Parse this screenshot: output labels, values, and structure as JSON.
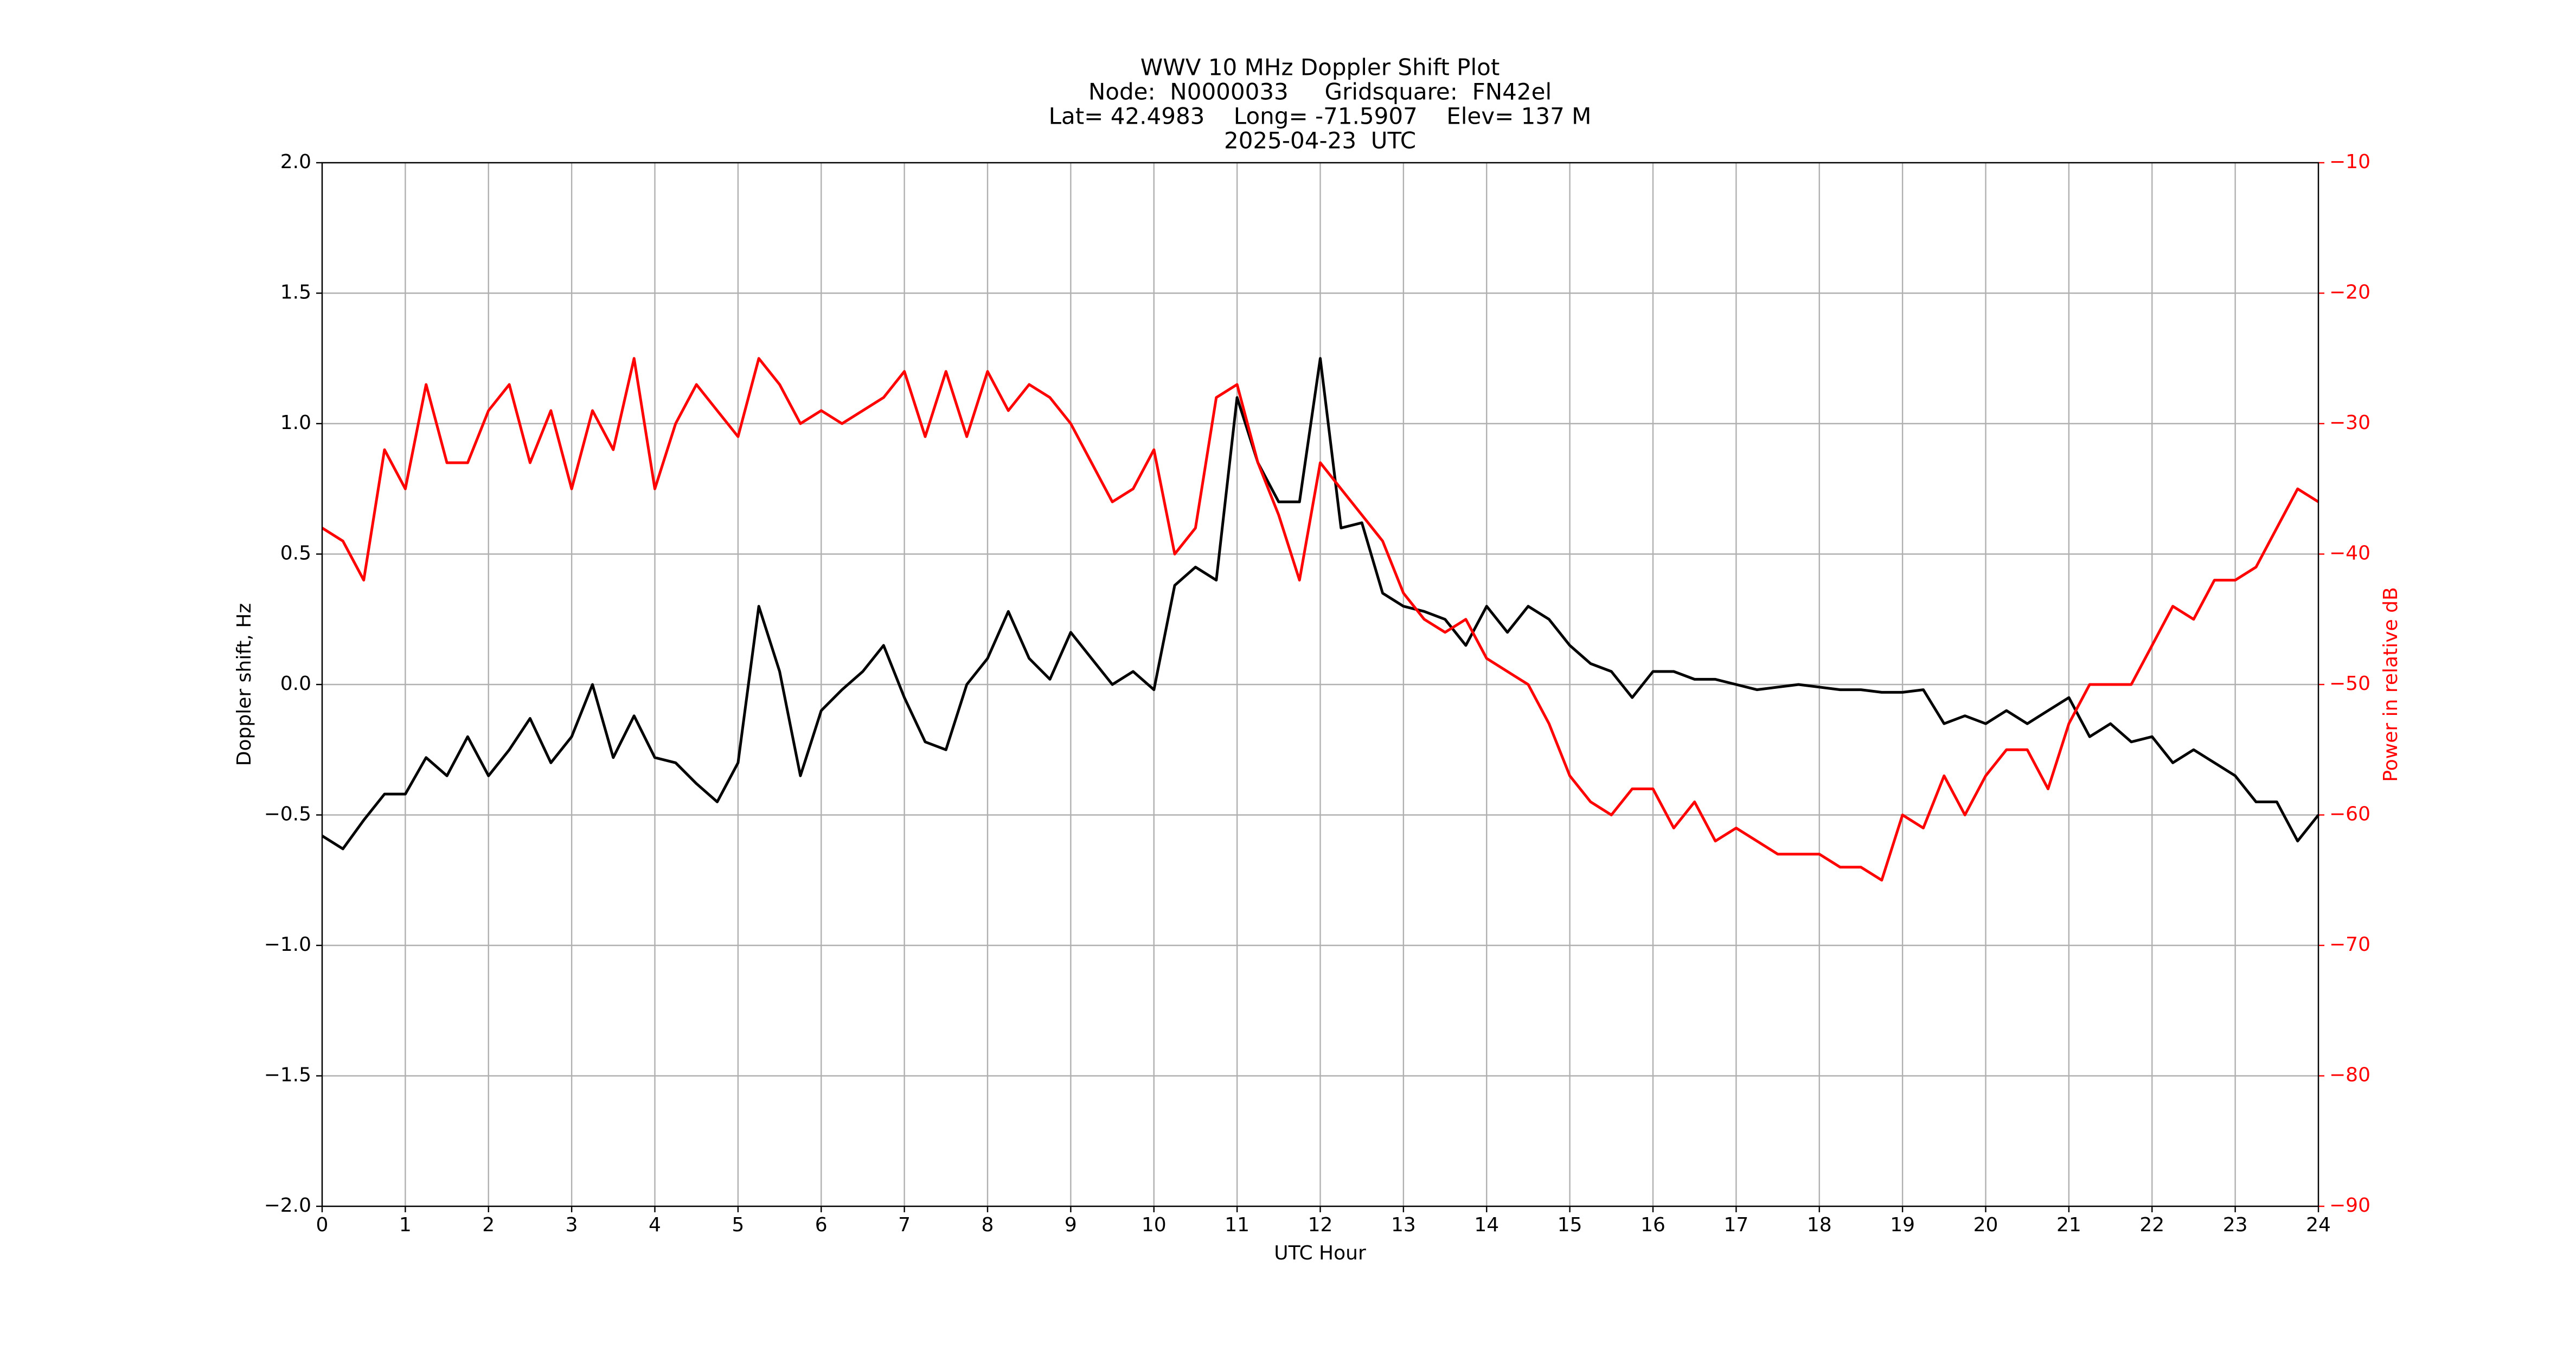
{
  "chart_data": {
    "type": "line",
    "title": [
      "WWV 10 MHz Doppler Shift Plot",
      "Node:  N0000033     Gridsquare:  FN42el",
      "Lat= 42.4983    Long= -71.5907    Elev= 137 M",
      "2025-04-23  UTC"
    ],
    "x_label": "UTC Hour",
    "y_label": "Doppler shift, Hz",
    "y2_label": "Power in relative dB",
    "xlim": [
      0,
      24
    ],
    "xticks": [
      0,
      1,
      2,
      3,
      4,
      5,
      6,
      7,
      8,
      9,
      10,
      11,
      12,
      13,
      14,
      15,
      16,
      17,
      18,
      19,
      20,
      21,
      22,
      23,
      24
    ],
    "ylim": [
      -2.0,
      2.0
    ],
    "yticks": [
      {
        "value": -2.0,
        "label": "−2.0"
      },
      {
        "value": -1.5,
        "label": "−1.5"
      },
      {
        "value": -1.0,
        "label": "−1.0"
      },
      {
        "value": -0.5,
        "label": "−0.5"
      },
      {
        "value": 0.0,
        "label": "0.0"
      },
      {
        "value": 0.5,
        "label": "0.5"
      },
      {
        "value": 1.0,
        "label": "1.0"
      },
      {
        "value": 1.5,
        "label": "1.5"
      },
      {
        "value": 2.0,
        "label": "2.0"
      }
    ],
    "y2lim": [
      -90,
      -10
    ],
    "y2ticks": [
      {
        "value": -90,
        "label": "−90"
      },
      {
        "value": -80,
        "label": "−80"
      },
      {
        "value": -70,
        "label": "−70"
      },
      {
        "value": -60,
        "label": "−60"
      },
      {
        "value": -50,
        "label": "−50"
      },
      {
        "value": -40,
        "label": "−40"
      },
      {
        "value": -30,
        "label": "−30"
      },
      {
        "value": -20,
        "label": "−20"
      },
      {
        "value": -10,
        "label": "−10"
      }
    ],
    "grid": true,
    "x": [
      0,
      0.25,
      0.5,
      0.75,
      1,
      1.25,
      1.5,
      1.75,
      2,
      2.25,
      2.5,
      2.75,
      3,
      3.25,
      3.5,
      3.75,
      4,
      4.25,
      4.5,
      4.75,
      5,
      5.25,
      5.5,
      5.75,
      6,
      6.25,
      6.5,
      6.75,
      7,
      7.25,
      7.5,
      7.75,
      8,
      8.25,
      8.5,
      8.75,
      9,
      9.25,
      9.5,
      9.75,
      10,
      10.25,
      10.5,
      10.75,
      11,
      11.25,
      11.5,
      11.75,
      12,
      12.25,
      12.5,
      12.75,
      13,
      13.25,
      13.5,
      13.75,
      14,
      14.25,
      14.5,
      14.75,
      15,
      15.25,
      15.5,
      15.75,
      16,
      16.25,
      16.5,
      16.75,
      17,
      17.25,
      17.5,
      17.75,
      18,
      18.25,
      18.5,
      18.75,
      19,
      19.25,
      19.5,
      19.75,
      20,
      20.25,
      20.5,
      20.75,
      21,
      21.25,
      21.5,
      21.75,
      22,
      22.25,
      22.5,
      22.75,
      23,
      23.25,
      23.5,
      23.75,
      24
    ],
    "series": [
      {
        "name": "Doppler shift",
        "color": "#000000",
        "axis": "y",
        "values": [
          -0.58,
          -0.63,
          -0.52,
          -0.42,
          -0.42,
          -0.28,
          -0.35,
          -0.2,
          -0.35,
          -0.25,
          -0.13,
          -0.3,
          -0.2,
          0.0,
          -0.28,
          -0.12,
          -0.28,
          -0.3,
          -0.38,
          -0.45,
          -0.3,
          0.3,
          0.05,
          -0.35,
          -0.1,
          -0.02,
          0.05,
          0.15,
          -0.05,
          -0.22,
          -0.25,
          0.0,
          0.1,
          0.28,
          0.1,
          0.02,
          0.2,
          0.1,
          0.0,
          0.05,
          -0.02,
          0.38,
          0.45,
          0.4,
          1.1,
          0.85,
          0.7,
          0.7,
          1.25,
          0.6,
          0.62,
          0.35,
          0.3,
          0.28,
          0.25,
          0.15,
          0.3,
          0.2,
          0.3,
          0.25,
          0.15,
          0.08,
          0.05,
          -0.05,
          0.05,
          0.05,
          0.02,
          0.02,
          0.0,
          -0.02,
          -0.01,
          0.0,
          -0.01,
          -0.02,
          -0.02,
          -0.03,
          -0.03,
          -0.02,
          -0.15,
          -0.12,
          -0.15,
          -0.1,
          -0.15,
          -0.1,
          -0.05,
          -0.2,
          -0.15,
          -0.22,
          -0.2,
          -0.3,
          -0.25,
          -0.3,
          -0.35,
          -0.45,
          -0.45,
          -0.6,
          -0.5
        ]
      },
      {
        "name": "Power",
        "color": "#ff0000",
        "axis": "y2",
        "values": [
          -38,
          -39,
          -42,
          -32,
          -35,
          -27,
          -33,
          -33,
          -29,
          -27,
          -33,
          -29,
          -35,
          -29,
          -32,
          -25,
          -35,
          -30,
          -27,
          -29,
          -31,
          -25,
          -27,
          -30,
          -29,
          -30,
          -29,
          -28,
          -26,
          -31,
          -26,
          -31,
          -26,
          -29,
          -27,
          -28,
          -30,
          -33,
          -36,
          -35,
          -32,
          -40,
          -38,
          -28,
          -27,
          -33,
          -37,
          -42,
          -33,
          -35,
          -37,
          -39,
          -43,
          -45,
          -46,
          -45,
          -48,
          -49,
          -50,
          -53,
          -57,
          -59,
          -60,
          -58,
          -58,
          -61,
          -59,
          -62,
          -61,
          -62,
          -63,
          -63,
          -63,
          -64,
          -64,
          -65,
          -60,
          -61,
          -57,
          -60,
          -57,
          -55,
          -55,
          -58,
          -53,
          -50,
          -50,
          -50,
          -47,
          -44,
          -45,
          -42,
          -42,
          -41,
          -38,
          -35,
          -36
        ]
      }
    ]
  }
}
